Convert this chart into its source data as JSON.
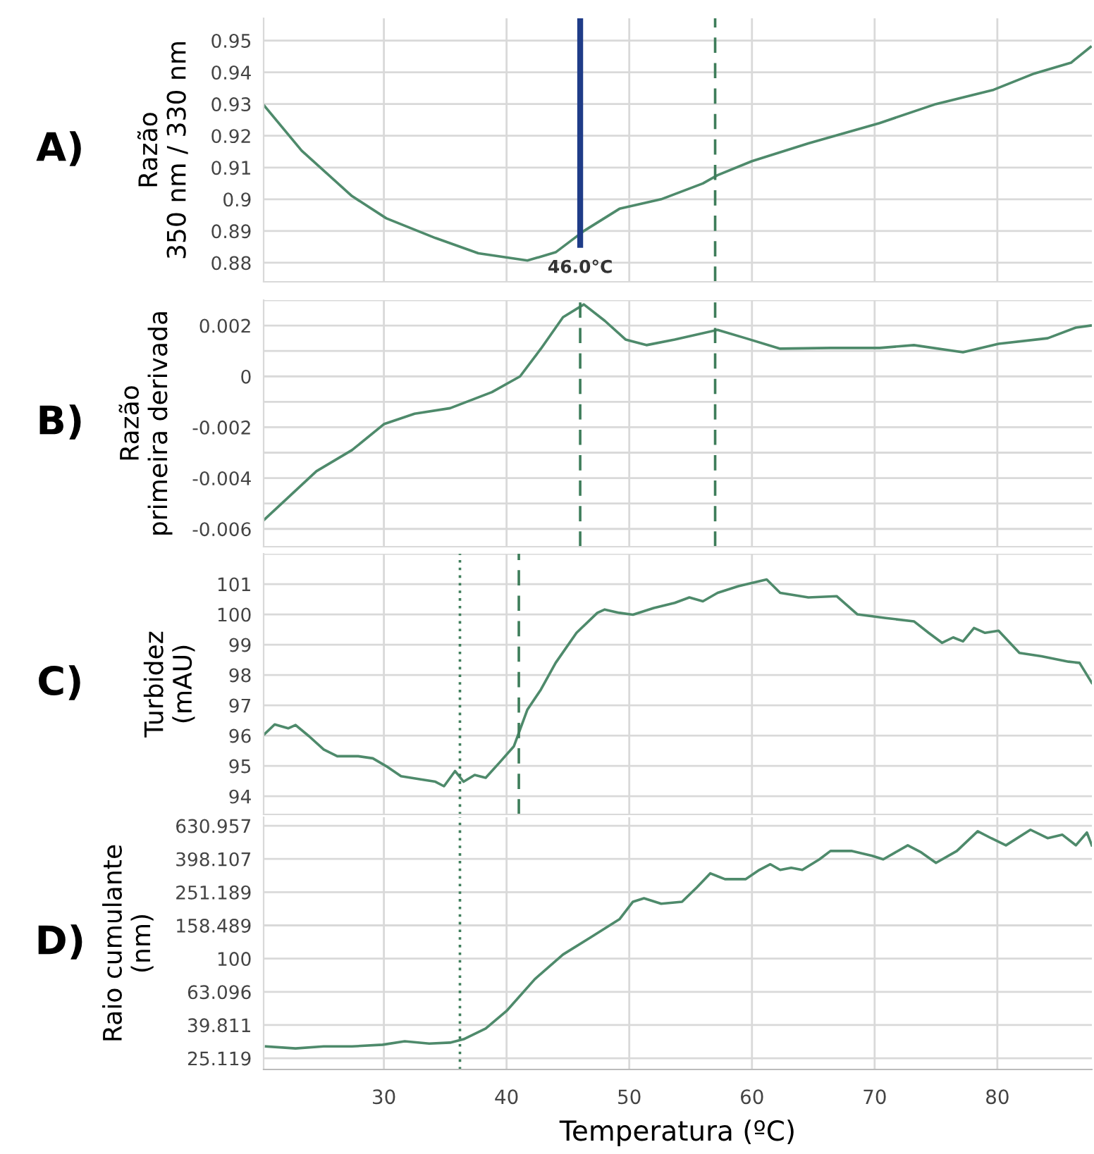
{
  "chart_data": [
    {
      "type": "line",
      "annotations": [
        "A)"
      ],
      "ylabel": "Razão\n350 nm / 330 nm",
      "tick_labels": "y",
      "grid": true,
      "xlim": [
        20.2,
        87.7
      ],
      "xticks": [
        30,
        40,
        50,
        60,
        70,
        80
      ],
      "ylim": [
        0.874,
        0.957
      ],
      "yticks": [
        0.88,
        0.89,
        0.9,
        0.91,
        0.92,
        0.93,
        0.94,
        0.95
      ],
      "x": [
        20.2,
        23.3,
        27.4,
        30.2,
        34.2,
        37.7,
        41.7,
        44.0,
        46.3,
        49.2,
        52.6,
        56.0,
        57.2,
        60.0,
        64.6,
        70.4,
        75.0,
        79.7,
        83.0,
        86.0,
        87.6
      ],
      "series": [
        {
          "color": "#4e8a6b",
          "values": [
            0.9297,
            0.9153,
            0.901,
            0.894,
            0.8878,
            0.883,
            0.8807,
            0.8833,
            0.89,
            0.897,
            0.9,
            0.905,
            0.9076,
            0.912,
            0.9176,
            0.924,
            0.93,
            0.9345,
            0.9396,
            0.943,
            0.948
          ]
        }
      ],
      "ref_lines": [
        {
          "axis": "x",
          "value": 46.0,
          "label": "46.0°C",
          "color": "#1f3c88",
          "line_style": "solid"
        },
        {
          "axis": "x",
          "value": 57,
          "label": null,
          "color": "#3e7d5a",
          "line_style": "dashed"
        }
      ]
    },
    {
      "type": "line",
      "annotations": [
        "B)"
      ],
      "ylabel": "Razão\nprimeira derivada",
      "tick_labels": "y",
      "grid": true,
      "xlim": [
        20.2,
        87.7
      ],
      "xticks": [
        30,
        40,
        50,
        60,
        70,
        80
      ],
      "ylim": [
        -0.0067,
        0.003
      ],
      "yticks": [
        -0.006,
        {
          "value": -0.005,
          "label": null
        },
        -0.004,
        {
          "value": -0.003,
          "label": null
        },
        -0.002,
        {
          "value": -0.001,
          "label": null
        },
        0,
        {
          "value": 0.001,
          "label": null
        },
        0.002,
        {
          "value": 0.003,
          "label": null
        }
      ],
      "x": [
        20.2,
        24.5,
        27.4,
        30.0,
        32.5,
        35.4,
        38.8,
        41.1,
        42.8,
        44.6,
        46.3,
        48.0,
        49.7,
        51.4,
        53.7,
        57.2,
        59.5,
        62.3,
        66.4,
        70.4,
        73.2,
        77.2,
        80.1,
        84.1,
        86.4,
        87.6
      ],
      "series": [
        {
          "color": "#4e8a6b",
          "values": [
            -0.00566,
            -0.00373,
            -0.0029,
            -0.00188,
            -0.00147,
            -0.00125,
            -0.00062,
            0.0,
            0.00109,
            0.00233,
            0.00283,
            0.00219,
            0.00145,
            0.00123,
            0.00145,
            0.00183,
            0.0015,
            0.00109,
            0.00112,
            0.00112,
            0.00123,
            0.00095,
            0.00128,
            0.0015,
            0.00192,
            0.002
          ]
        }
      ],
      "ref_lines": [
        {
          "axis": "x",
          "value": 46,
          "label": null,
          "color": "#3e7d5a",
          "line_style": "dashed"
        },
        {
          "axis": "x",
          "value": 57,
          "label": null,
          "color": "#3e7d5a",
          "line_style": "dashed"
        }
      ]
    },
    {
      "type": "line",
      "annotations": [
        "C)"
      ],
      "ylabel": "Turbidez\n(mAU)",
      "tick_labels": "y",
      "grid": true,
      "xlim": [
        20.2,
        87.7
      ],
      "xticks": [
        30,
        40,
        50,
        60,
        70,
        80
      ],
      "ylim": [
        93.4,
        102
      ],
      "yticks": [
        94,
        95,
        96,
        97,
        98,
        99,
        100,
        101,
        {
          "value": 102,
          "label": null
        }
      ],
      "x": [
        20.2,
        21.1,
        22.2,
        22.8,
        23.9,
        25.1,
        26.2,
        27.9,
        29.1,
        30.2,
        31.4,
        33.1,
        34.2,
        34.9,
        35.8,
        36.5,
        37.4,
        38.3,
        39.4,
        40.6,
        41.7,
        42.8,
        44.0,
        45.7,
        47.4,
        48.0,
        49.2,
        50.3,
        52.0,
        53.7,
        54.9,
        56.0,
        57.2,
        58.9,
        61.2,
        62.3,
        64.6,
        66.9,
        68.6,
        70.9,
        73.2,
        74.4,
        75.5,
        76.4,
        77.2,
        78.1,
        79.0,
        80.1,
        81.8,
        83.6,
        85.8,
        86.7,
        87.7
      ],
      "series": [
        {
          "color": "#4e8a6b",
          "values": [
            96.02,
            96.37,
            96.24,
            96.35,
            95.98,
            95.54,
            95.32,
            95.32,
            95.25,
            94.99,
            94.66,
            94.55,
            94.48,
            94.33,
            94.83,
            94.48,
            94.7,
            94.61,
            95.1,
            95.65,
            96.86,
            97.52,
            98.4,
            99.39,
            100.05,
            100.16,
            100.05,
            99.99,
            100.21,
            100.38,
            100.56,
            100.43,
            100.71,
            100.93,
            101.15,
            100.71,
            100.56,
            100.6,
            100.0,
            99.88,
            99.77,
            99.39,
            99.06,
            99.24,
            99.11,
            99.55,
            99.39,
            99.46,
            98.73,
            98.62,
            98.44,
            98.4,
            97.74
          ]
        }
      ],
      "ref_lines": [
        {
          "axis": "x",
          "value": 36.2,
          "label": null,
          "color": "#3e7d5a",
          "line_style": "dotted"
        },
        {
          "axis": "x",
          "value": 41.0,
          "label": null,
          "color": "#3e7d5a",
          "line_style": "dashed"
        }
      ]
    },
    {
      "type": "line",
      "annotations": [
        "D)"
      ],
      "ylabel": "Raio cumulante\n(nm)",
      "xlabel": "Temperatura (ºC)",
      "grid": true,
      "log": true,
      "xlim": [
        20.2,
        87.7
      ],
      "xticks": [
        30,
        40,
        50,
        60,
        70,
        80
      ],
      "ylim": [
        21.5,
        710
      ],
      "yticks": [
        25.119,
        39.811,
        63.096,
        100,
        158.489,
        251.189,
        398.107,
        630.957
      ],
      "x": [
        20.4,
        22.8,
        25.1,
        27.4,
        29.9,
        31.7,
        33.7,
        35.4,
        36.5,
        38.3,
        40.0,
        42.3,
        44.6,
        46.9,
        49.2,
        50.3,
        51.2,
        52.6,
        54.3,
        55.5,
        56.6,
        57.8,
        59.5,
        60.6,
        61.5,
        62.3,
        63.2,
        64.1,
        65.5,
        66.4,
        68.1,
        69.8,
        70.7,
        72.7,
        73.8,
        75.0,
        76.7,
        78.4,
        79.5,
        80.7,
        82.7,
        84.1,
        85.3,
        86.4,
        87.3,
        87.7
      ],
      "series": [
        {
          "color": "#4e8a6b",
          "values": [
            29.6,
            28.8,
            29.6,
            29.6,
            30.3,
            31.8,
            30.8,
            31.2,
            32.7,
            37.9,
            48.4,
            75.2,
            105.8,
            135,
            172.5,
            220,
            231,
            214,
            220,
            268,
            326,
            301,
            301,
            342,
            370,
            342,
            352,
            342,
            396,
            445,
            445,
            416,
            396,
            481,
            436,
            377,
            445,
            585,
            531,
            481,
            597,
            531,
            557,
            481,
            574,
            481
          ]
        }
      ],
      "ref_lines": [
        {
          "axis": "x",
          "value": 36.2,
          "label": null,
          "color": "#3e7d5a",
          "line_style": "dotted"
        }
      ]
    }
  ]
}
